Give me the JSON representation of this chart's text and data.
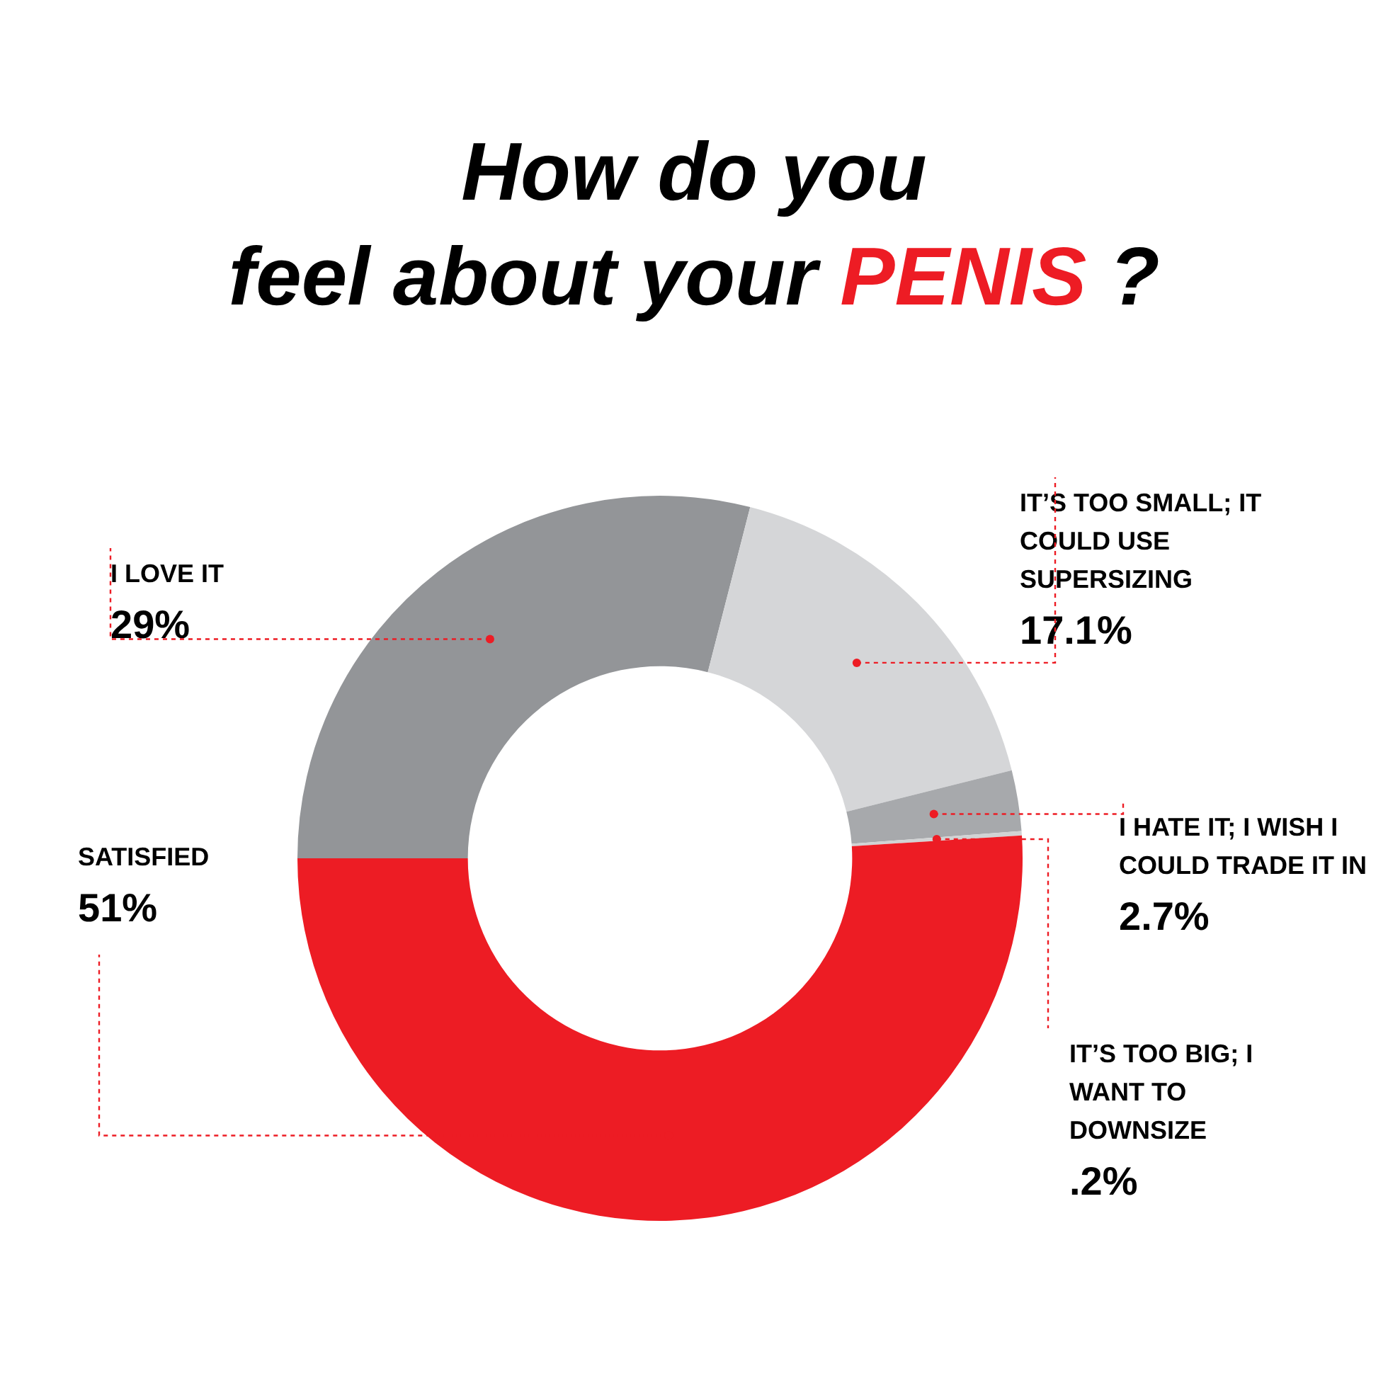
{
  "chart_data": {
    "type": "donut",
    "title": "How do you feel about your PENIS ?",
    "categories": [
      "I LOVE IT",
      "IT’S TOO SMALL; IT COULD USE SUPERSIZING",
      "I HATE IT; I WISH I COULD TRADE IT IN",
      "IT’S TOO BIG; I WANT TO DOWNSIZE",
      "SATISFIED"
    ],
    "values": [
      29,
      17.1,
      2.7,
      0.2,
      51
    ],
    "colors": [
      "#939598",
      "#d5d6d8",
      "#a7a9ac",
      "#d1d3d4",
      "#ed1c24"
    ],
    "value_labels": [
      "29%",
      "17.1%",
      "2.7%",
      ".2%",
      "51%"
    ],
    "legend": false
  }
}
